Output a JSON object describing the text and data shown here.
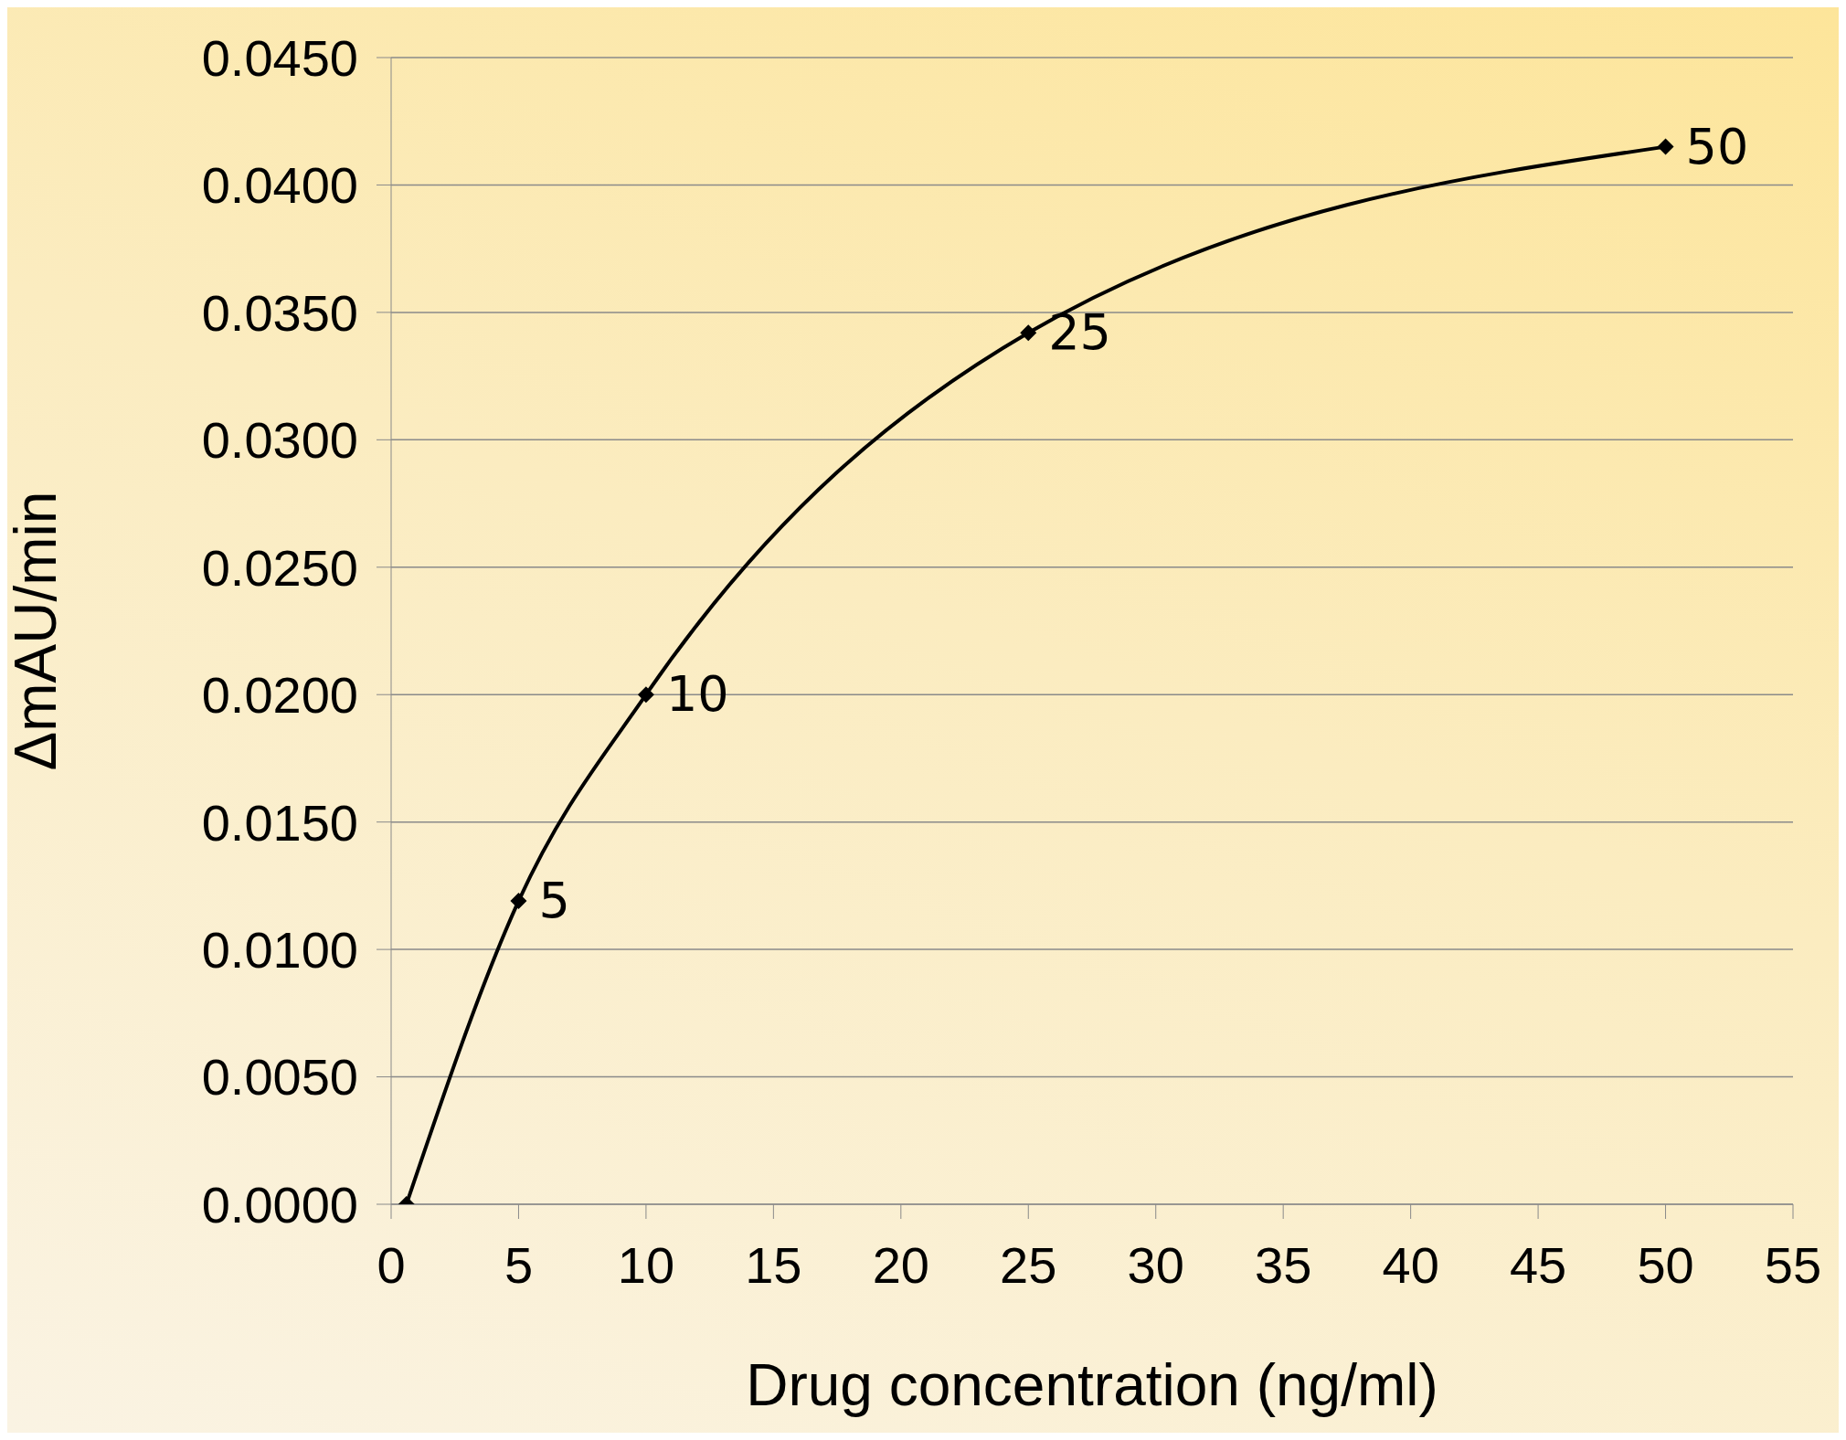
{
  "chart_data": {
    "type": "line",
    "xlabel": "Drug concentration (ng/ml)",
    "ylabel": "ΔmAU/min",
    "x": [
      0.6,
      5,
      10,
      25,
      50
    ],
    "series": [
      {
        "color": "#000000",
        "values": [
          0,
          0.0119,
          0.02,
          0.0342,
          0.0415
        ]
      }
    ],
    "annotations": [
      {
        "text": "5",
        "x": 5,
        "y": 0.0119
      },
      {
        "text": "10",
        "x": 10,
        "y": 0.02
      },
      {
        "text": "25",
        "x": 25,
        "y": 0.0342
      },
      {
        "text": "50",
        "x": 50,
        "y": 0.0415
      }
    ],
    "xlim": [
      0,
      55
    ],
    "xticks": [
      0,
      5,
      10,
      15,
      20,
      25,
      30,
      35,
      40,
      45,
      50,
      55
    ],
    "ylim": [
      0,
      0.045
    ],
    "yticks": [
      {
        "value": 0,
        "label": "0.0000"
      },
      {
        "value": 0.005,
        "label": "0.0050"
      },
      {
        "value": 0.01,
        "label": "0.0100"
      },
      {
        "value": 0.015,
        "label": "0.0150"
      },
      {
        "value": 0.02,
        "label": "0.0200"
      },
      {
        "value": 0.025,
        "label": "0.0250"
      },
      {
        "value": 0.03,
        "label": "0.0300"
      },
      {
        "value": 0.035,
        "label": "0.0350"
      },
      {
        "value": 0.04,
        "label": "0.0400"
      },
      {
        "value": 0.045,
        "label": "0.0450"
      }
    ],
    "grid": "y",
    "marker": "diamond",
    "line_style": "solid"
  }
}
